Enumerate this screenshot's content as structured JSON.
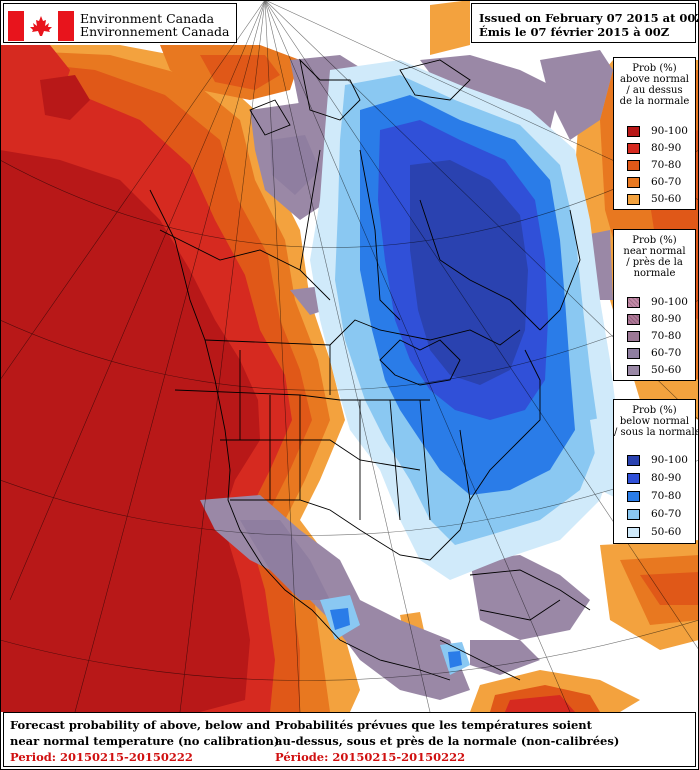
{
  "header": {
    "agency_en": "Environment Canada",
    "agency_fr": "Environnement Canada",
    "issued_en": "Issued on February 07 2015 at 00Z",
    "issued_fr": "Émis le 07 février 2015 à 00Z"
  },
  "legends": {
    "above": {
      "title_lines": [
        "Prob (%)",
        "above normal",
        "/ au dessus",
        "de la normale"
      ],
      "items": [
        {
          "range": "90-100",
          "color": "#b81818"
        },
        {
          "range": "80-90",
          "color": "#d62a20"
        },
        {
          "range": "70-80",
          "color": "#e05818"
        },
        {
          "range": "60-70",
          "color": "#e87820"
        },
        {
          "range": "50-60",
          "color": "#f3a23e"
        }
      ]
    },
    "near": {
      "title_lines": [
        "Prob (%)",
        "near normal",
        "/ près de la",
        "normale"
      ],
      "items": [
        {
          "range": "90-100",
          "color": "#c48aa8"
        },
        {
          "range": "80-90",
          "color": "#b07898"
        },
        {
          "range": "70-80",
          "color": "#9c7896"
        },
        {
          "range": "60-70",
          "color": "#8f7ea0"
        },
        {
          "range": "50-60",
          "color": "#9a88a6"
        }
      ]
    },
    "below": {
      "title_lines": [
        "Prob (%)",
        "below normal",
        "/ sous la normale"
      ],
      "items": [
        {
          "range": "90-100",
          "color": "#2a42b0"
        },
        {
          "range": "80-90",
          "color": "#3050d8"
        },
        {
          "range": "70-80",
          "color": "#2a7ce8"
        },
        {
          "range": "60-70",
          "color": "#8ac8f2"
        },
        {
          "range": "50-60",
          "color": "#d0eafa"
        }
      ]
    }
  },
  "footer": {
    "en": {
      "line1": "Forecast probability of above, below and",
      "line2": "near normal temperature (no calibration)",
      "period": "Period: 20150215-20150222"
    },
    "fr": {
      "line1": "Probabilités prévues que les températures soient",
      "line2": "au-dessus, sous et près de la normale (non-calibrées)",
      "period": "Période: 20150215-20150222"
    }
  },
  "colors": {
    "flag_red": "#e8141c",
    "period_text": "#d01010",
    "land_white": "#ffffff",
    "boundary_lines": "#000000"
  },
  "icons": {
    "flag": "canada-flag-icon"
  }
}
